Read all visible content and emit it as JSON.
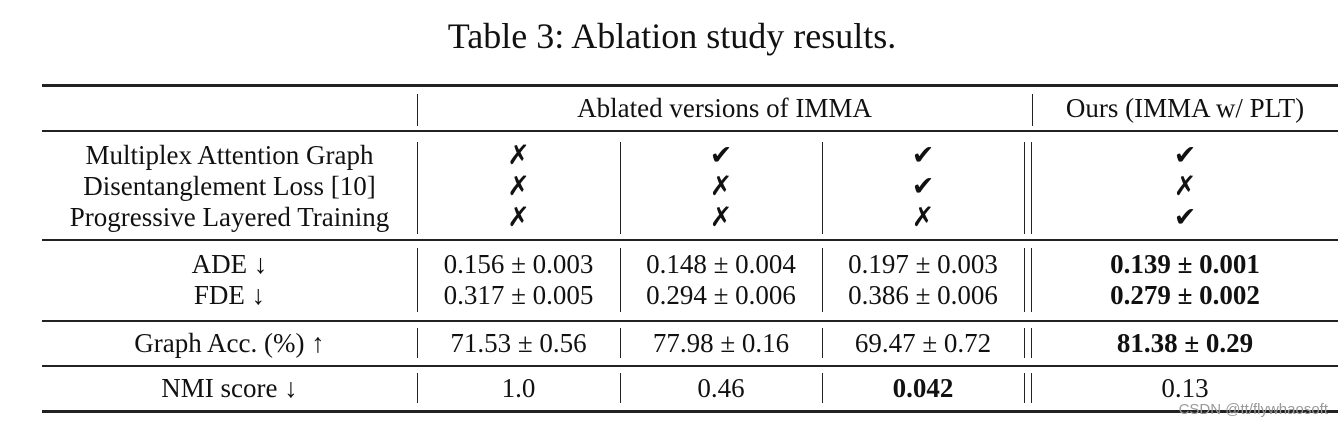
{
  "caption": "Table 3: Ablation study results.",
  "header": {
    "group_label": "Ablated versions of IMMA",
    "ours_label": "Ours (IMMA w/ PLT)"
  },
  "components": [
    {
      "name": "Multiplex Attention Graph",
      "marks": [
        "✗",
        "✔",
        "✔",
        "✔"
      ]
    },
    {
      "name": "Disentanglement Loss [10]",
      "marks": [
        "✗",
        "✗",
        "✔",
        "✗"
      ]
    },
    {
      "name": "Progressive Layered Training",
      "marks": [
        "✗",
        "✗",
        "✗",
        "✔"
      ]
    }
  ],
  "metrics": {
    "ade": {
      "label": "ADE ↓",
      "values": [
        "0.156 ± 0.003",
        "0.148 ± 0.004",
        "0.197 ± 0.003",
        "0.139 ± 0.001"
      ]
    },
    "fde": {
      "label": "FDE ↓",
      "values": [
        "0.317 ± 0.005",
        "0.294 ± 0.006",
        "0.386 ± 0.006",
        "0.279 ± 0.002"
      ]
    },
    "graph_acc": {
      "label": "Graph Acc. (%) ↑",
      "values": [
        "71.53 ± 0.56",
        "77.98 ± 0.16",
        "69.47 ± 0.72",
        "81.38 ± 0.29"
      ]
    },
    "nmi": {
      "label": "NMI score ↓",
      "values": [
        "1.0",
        "0.46",
        "0.042",
        "0.13"
      ]
    }
  },
  "watermark": "CSDN @tt/flywhaosoft"
}
